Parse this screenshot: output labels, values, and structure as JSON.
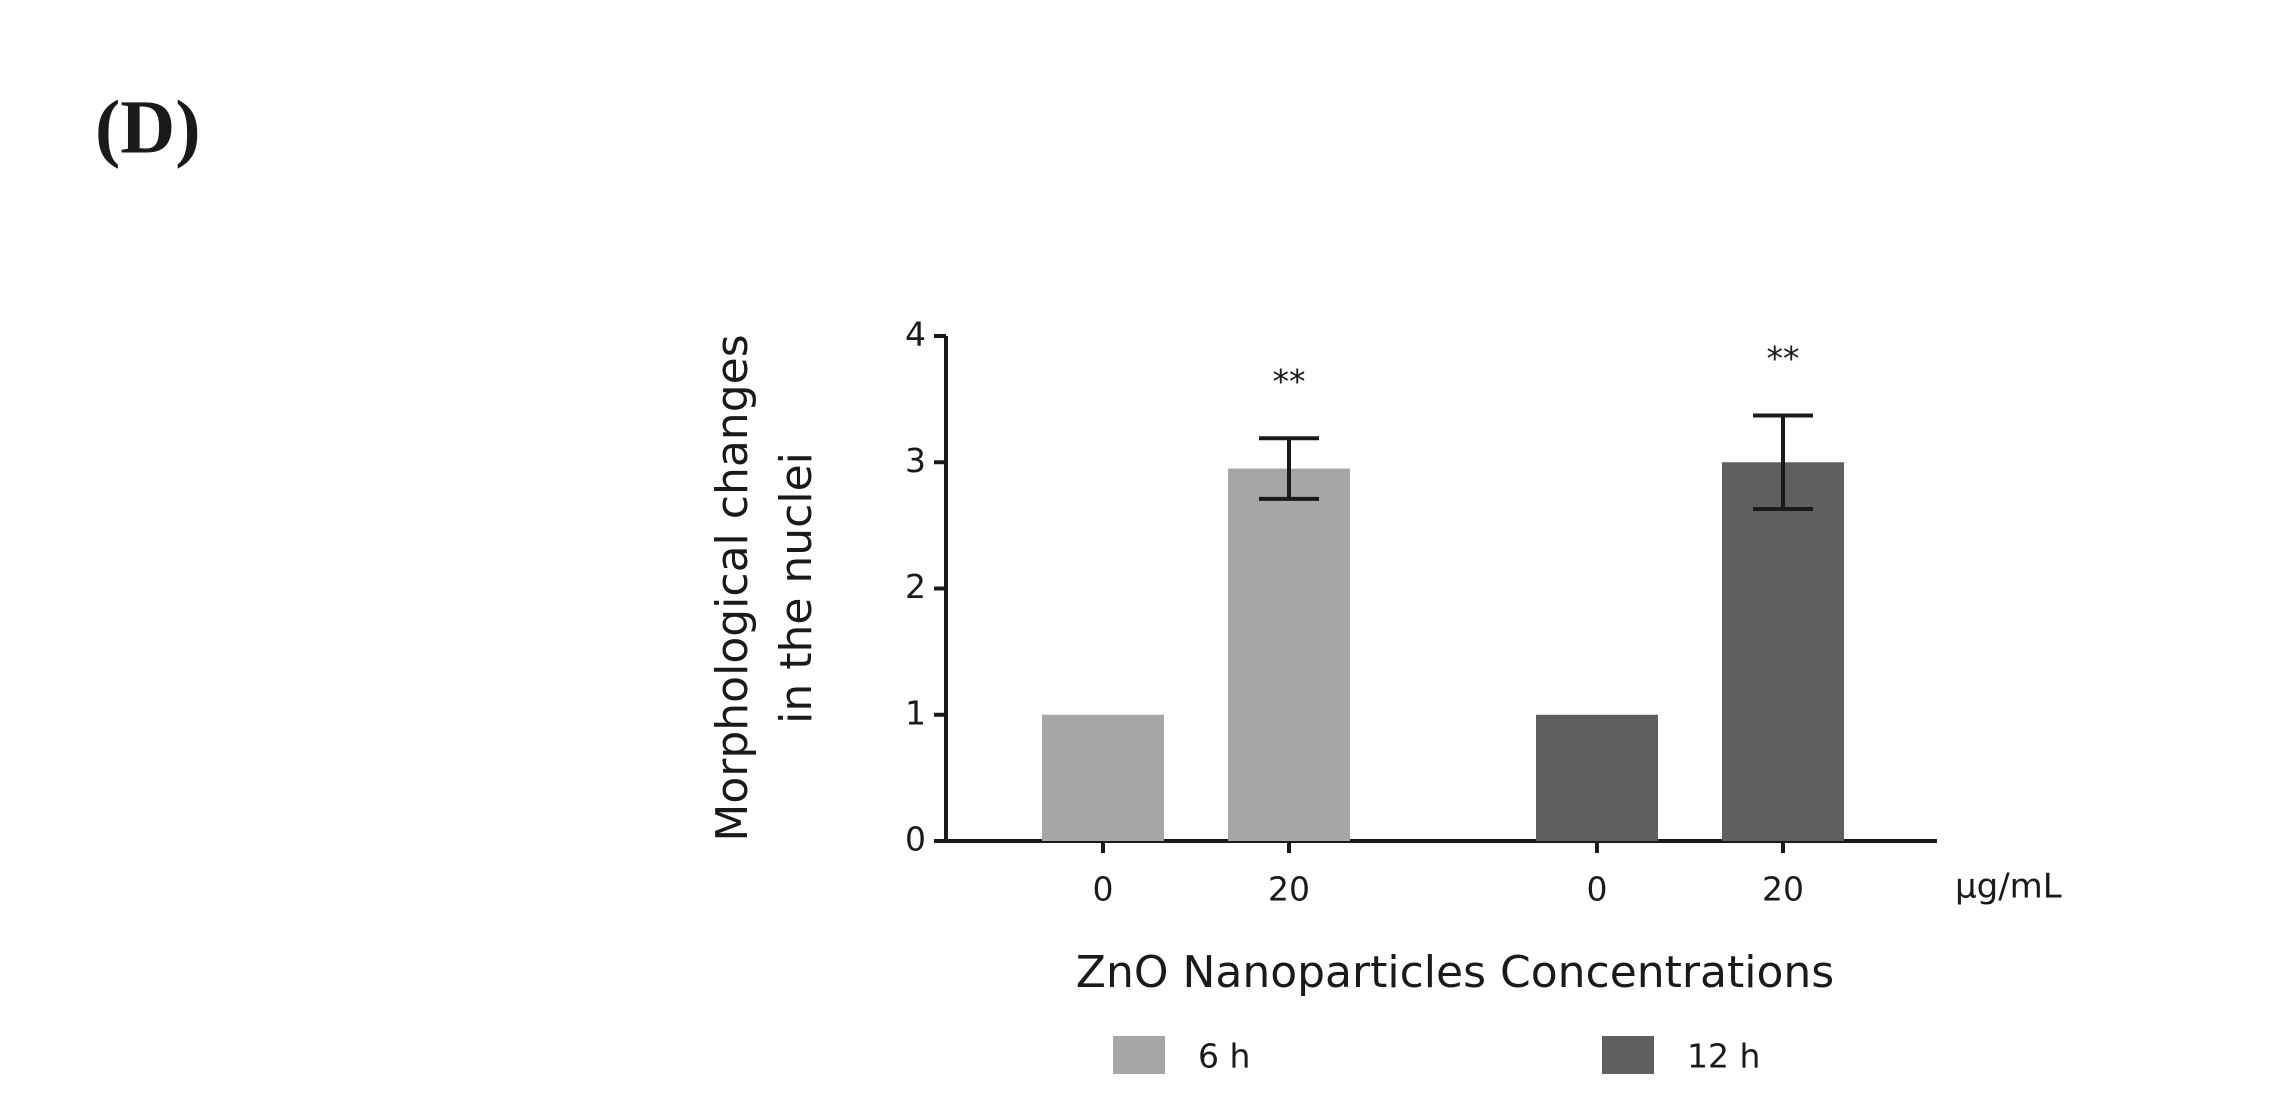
{
  "chart_data": {
    "type": "bar",
    "panel_label": "(D)",
    "y_label": [
      "Morphological changes",
      "in the nuclei"
    ],
    "x_label": "ZnO Nanoparticles Concentrations",
    "x_unit": "µg/mL",
    "categories": [
      "0",
      "20"
    ],
    "series": [
      {
        "name": "6 h",
        "color": "#a6a6a7",
        "values": [
          1,
          2.95
        ],
        "errors": [
          null,
          0.24
        ],
        "annotations": [
          null,
          "**"
        ]
      },
      {
        "name": "12 h",
        "color": "#5f5f60",
        "values": [
          1,
          3.0
        ],
        "errors": [
          null,
          0.37
        ],
        "annotations": [
          null,
          "**"
        ]
      }
    ],
    "ylim": [
      0,
      4
    ],
    "yticks": [
      0,
      1,
      2,
      3,
      4
    ],
    "grid": false
  }
}
